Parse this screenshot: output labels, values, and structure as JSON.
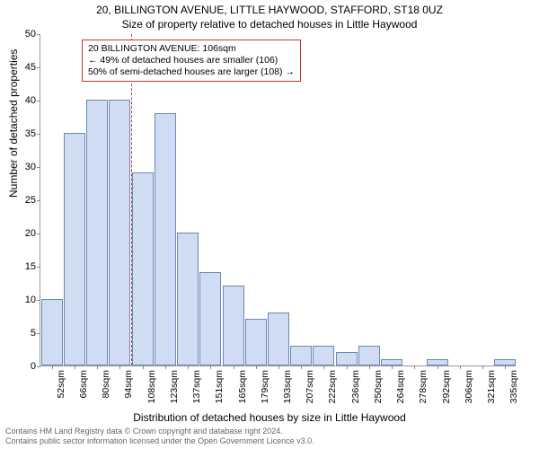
{
  "title_line1": "20, BILLINGTON AVENUE, LITTLE HAYWOOD, STAFFORD, ST18 0UZ",
  "title_line2": "Size of property relative to detached houses in Little Haywood",
  "y_axis_label": "Number of detached properties",
  "x_axis_label": "Distribution of detached houses by size in Little Haywood",
  "footer_line1": "Contains HM Land Registry data © Crown copyright and database right 2024.",
  "footer_line2": "Contains public sector information licensed under the Open Government Licence v3.0.",
  "chart": {
    "type": "histogram",
    "ylim": [
      0,
      50
    ],
    "ytick_step": 5,
    "bar_fill": "#cfdcf1",
    "bar_stroke": "#6b88b7",
    "axis_color": "#999999",
    "marker_color": "#cc3333",
    "background_color": "#ffffff",
    "x_categories": [
      "52sqm",
      "66sqm",
      "80sqm",
      "94sqm",
      "108sqm",
      "123sqm",
      "137sqm",
      "151sqm",
      "165sqm",
      "179sqm",
      "193sqm",
      "207sqm",
      "222sqm",
      "236sqm",
      "250sqm",
      "264sqm",
      "278sqm",
      "292sqm",
      "306sqm",
      "321sqm",
      "335sqm"
    ],
    "values": [
      10,
      35,
      40,
      40,
      29,
      38,
      20,
      14,
      12,
      7,
      8,
      3,
      3,
      2,
      3,
      1,
      0,
      1,
      0,
      0,
      1
    ],
    "marker_index_between": 4,
    "annotation": {
      "lines": [
        "20 BILLINGTON AVENUE: 106sqm",
        "← 49% of detached houses are smaller (106)",
        "50% of semi-detached houses are larger (108) →"
      ],
      "box_border": "#cc3333"
    },
    "title_fontsize": 12,
    "axis_label_fontsize": 12,
    "tick_fontsize": 11
  }
}
